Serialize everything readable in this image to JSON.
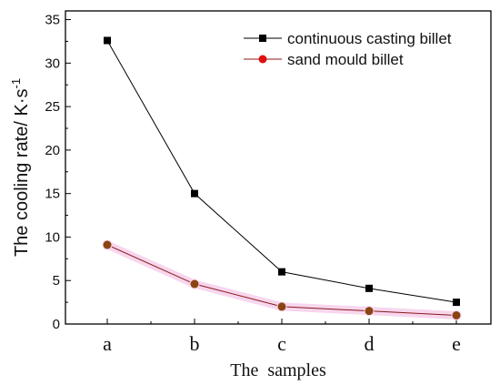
{
  "chart_data": {
    "type": "line",
    "title": "",
    "xlabel": "The  samples",
    "ylabel": "The cooling rate/ K·s",
    "ylabel_superscript": "-1",
    "categories": [
      "a",
      "b",
      "c",
      "d",
      "e"
    ],
    "ylim": [
      0,
      36
    ],
    "yticks": [
      "0",
      "5",
      "10",
      "15",
      "20",
      "25",
      "30",
      "35"
    ],
    "grid": false,
    "legend_position": "top-right",
    "series": [
      {
        "name": "continuous casting billet",
        "values": [
          32.6,
          15.0,
          6.0,
          4.1,
          2.5
        ],
        "color": "#000000",
        "marker": "square"
      },
      {
        "name": "sand mould billet",
        "values": [
          9.1,
          4.6,
          2.0,
          1.5,
          1.0
        ],
        "color": "#8B1A1A",
        "marker": "circle",
        "marker_fill": "#8B4513",
        "highlight": "#f7d6ee"
      }
    ]
  }
}
